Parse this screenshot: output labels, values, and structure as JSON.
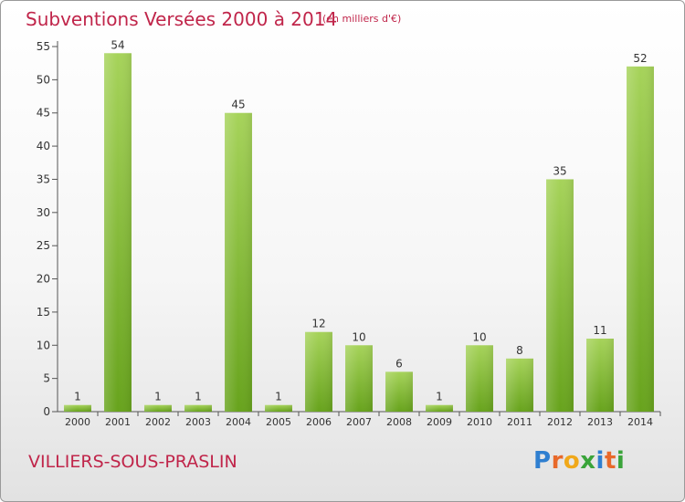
{
  "header": {
    "title": "Subventions Versées 2000 à 2014",
    "subtitle": "(en milliers d'€)"
  },
  "footer": {
    "commune": "VILLIERS-SOUS-PRASLIN",
    "logo_letters": [
      "P",
      "r",
      "o",
      "x",
      "i",
      "t",
      "i"
    ],
    "logo_colors": [
      "#2f7fd0",
      "#e8692a",
      "#f0a81a",
      "#3aa43a",
      "#2f7fd0",
      "#e8692a",
      "#3aa43a"
    ]
  },
  "colors": {
    "bar_light": "#a6d35a",
    "bar_dark": "#67a31c",
    "text": "#c0254a",
    "axis": "#555555"
  },
  "chart_data": {
    "type": "bar",
    "categories": [
      "2000",
      "2001",
      "2002",
      "2003",
      "2004",
      "2005",
      "2006",
      "2007",
      "2008",
      "2009",
      "2010",
      "2011",
      "2012",
      "2013",
      "2014"
    ],
    "values": [
      1,
      54,
      1,
      1,
      45,
      1,
      12,
      10,
      6,
      1,
      10,
      8,
      35,
      11,
      52
    ],
    "ylim": [
      0,
      55
    ],
    "yticks": [
      0,
      5,
      10,
      15,
      20,
      25,
      30,
      35,
      40,
      45,
      50,
      55
    ],
    "grid": false
  }
}
